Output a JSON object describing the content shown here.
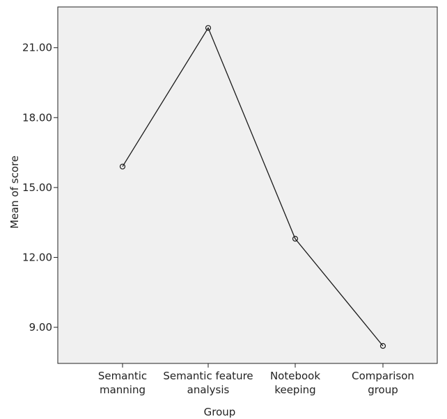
{
  "chart_data": {
    "type": "line",
    "title": "",
    "xlabel": "Group",
    "ylabel": "Mean of score",
    "categories": [
      [
        "Semantic",
        "manning"
      ],
      [
        "Semantic feature",
        "analysis"
      ],
      [
        "Notebook",
        "keeping"
      ],
      [
        "Comparison",
        "group"
      ]
    ],
    "series": [
      {
        "values": [
          15.9,
          21.85,
          12.8,
          8.2
        ],
        "marker": "circle"
      }
    ],
    "yticks": [
      "9.00",
      "12.00",
      "15.00",
      "18.00",
      "21.00"
    ],
    "ylim": [
      7.45,
      22.75
    ],
    "grid": false,
    "legend": "none",
    "colors": {
      "plot_bg": "#f0f0f0",
      "line": "#1a1a1a",
      "axis": "#222222"
    }
  }
}
